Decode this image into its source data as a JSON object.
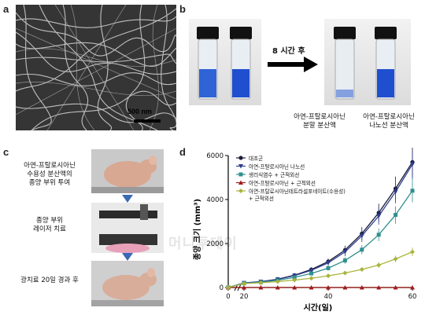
{
  "panels": {
    "a": {
      "letter": "a",
      "scale_bar": "500 nm"
    },
    "b": {
      "letter": "b",
      "arrow_label": "8 시간 후",
      "caption_left": [
        "아연-프탈로시아닌",
        "분말 분산액"
      ],
      "caption_right": [
        "아연-프탈로시아닌",
        "나노선 분산액"
      ]
    },
    "c": {
      "letter": "c",
      "step1": [
        "아연-프탈로시아닌",
        "수용성 분산액의",
        "종양 부위 투여"
      ],
      "step2": [
        "종양 부위",
        "레이저 치료"
      ],
      "step3": [
        "광치료 20일 경과 후"
      ]
    },
    "d": {
      "letter": "d"
    }
  },
  "watermark": "머니투데이",
  "colors": {
    "blue_liquid": "#2f63d6",
    "series_black": "#1a1a3a",
    "series_navy": "#2e3f8f",
    "series_teal": "#2f8f8f",
    "series_red": "#a01a1a",
    "series_olive": "#a9b43a"
  },
  "chart_data": {
    "type": "line",
    "xlabel": "시간(일)",
    "ylabel": "종양 크기 (mm³)",
    "xlim": [
      0,
      60
    ],
    "ylim": [
      0,
      6000
    ],
    "x_ticks": [
      "0",
      "20",
      "40",
      "60"
    ],
    "y_ticks": [
      "0",
      "2000",
      "4000",
      "6000"
    ],
    "x_axis_break": true,
    "legend_position": "top-left",
    "series": [
      {
        "name": "대조군",
        "color": "#1a1a3a",
        "marker": "circle",
        "x": [
          0,
          20,
          24,
          28,
          32,
          36,
          40,
          44,
          48,
          52,
          56,
          60
        ],
        "y": [
          0,
          200,
          260,
          380,
          560,
          820,
          1180,
          1700,
          2450,
          3400,
          4500,
          5700
        ]
      },
      {
        "name": "아연-프탈로시아닌 나노선",
        "color": "#2e3f8f",
        "marker": "triangle-down",
        "x": [
          0,
          20,
          24,
          28,
          32,
          36,
          40,
          44,
          48,
          52,
          56,
          60
        ],
        "y": [
          0,
          210,
          270,
          370,
          540,
          780,
          1120,
          1620,
          2350,
          3250,
          4350,
          5600
        ]
      },
      {
        "name": "생리식염수 + 근적외선",
        "color": "#2f8f8f",
        "marker": "square",
        "x": [
          0,
          20,
          24,
          28,
          32,
          36,
          40,
          44,
          48,
          52,
          56,
          60
        ],
        "y": [
          0,
          190,
          240,
          330,
          460,
          640,
          880,
          1230,
          1720,
          2400,
          3300,
          4400
        ]
      },
      {
        "name": "아연-프탈로시아닌 + 근적외선",
        "color": "#a01a1a",
        "marker": "triangle",
        "x": [
          0,
          20,
          24,
          28,
          32,
          36,
          40,
          44,
          48,
          52,
          56,
          60
        ],
        "y": [
          0,
          0,
          0,
          0,
          0,
          0,
          0,
          0,
          0,
          0,
          0,
          0
        ]
      },
      {
        "name": "아연-프탈로시아닌테트라설포네이트(수용성)\n+ 근적외선",
        "color": "#a9b43a",
        "marker": "diamond",
        "x": [
          0,
          20,
          24,
          28,
          32,
          36,
          40,
          44,
          48,
          52,
          56,
          60
        ],
        "y": [
          0,
          180,
          220,
          270,
          340,
          420,
          530,
          660,
          820,
          1020,
          1300,
          1620
        ]
      }
    ]
  }
}
